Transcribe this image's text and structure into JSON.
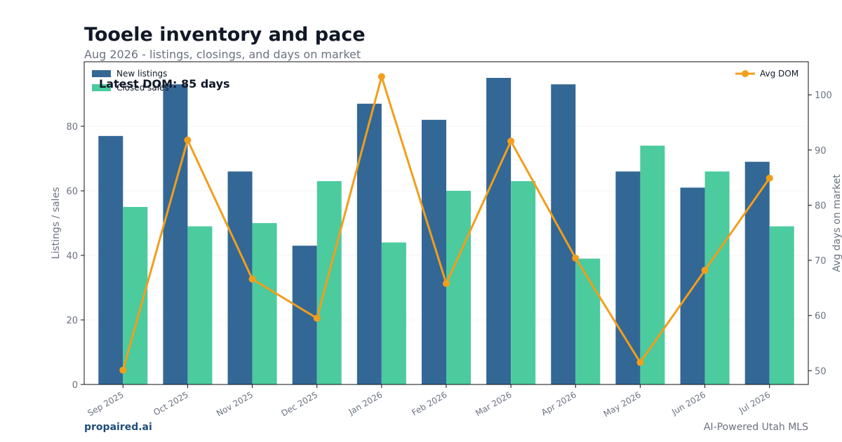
{
  "title": "Tooele inventory and pace",
  "subtitle": "Aug 2026 - listings, closings, and days on market",
  "footer": {
    "brand": "propaired.ai",
    "tagline": "AI-Powered Utah MLS"
  },
  "colors": {
    "new_listings": "#336795",
    "closed_sales": "#4bcb9e",
    "avg_dom": "#f29e1b"
  },
  "chart_data": {
    "type": "bar",
    "categories": [
      "Sep 2025",
      "Oct 2025",
      "Nov 2025",
      "Dec 2025",
      "Jan 2026",
      "Feb 2026",
      "Mar 2026",
      "Apr 2026",
      "May 2026",
      "Jun 2026",
      "Jul 2026"
    ],
    "series": [
      {
        "name": "New listings",
        "type": "bar",
        "axis": "left",
        "values": [
          77,
          93,
          66,
          43,
          87,
          82,
          95,
          93,
          66,
          61,
          69
        ]
      },
      {
        "name": "Closed sales",
        "type": "bar",
        "axis": "left",
        "values": [
          55,
          49,
          50,
          63,
          44,
          60,
          63,
          39,
          74,
          66,
          49
        ]
      },
      {
        "name": "Avg DOM",
        "type": "line",
        "axis": "right",
        "values": [
          50.1,
          91.8,
          66.6,
          59.5,
          103.3,
          65.8,
          91.6,
          70.4,
          51.5,
          68.2,
          84.9
        ]
      }
    ],
    "ylabel": "Listings / sales",
    "ylim": [
      0,
      100
    ],
    "yticks": [
      0,
      20,
      40,
      60,
      80
    ],
    "y2label": "Avg days on market",
    "y2lim": [
      47.5,
      106.0
    ],
    "y2ticks": [
      50,
      60,
      70,
      80,
      90,
      100
    ],
    "annotation": "Latest DOM: 85 days",
    "legend_left": "top-left",
    "legend_right": "top-right",
    "grid": true
  }
}
